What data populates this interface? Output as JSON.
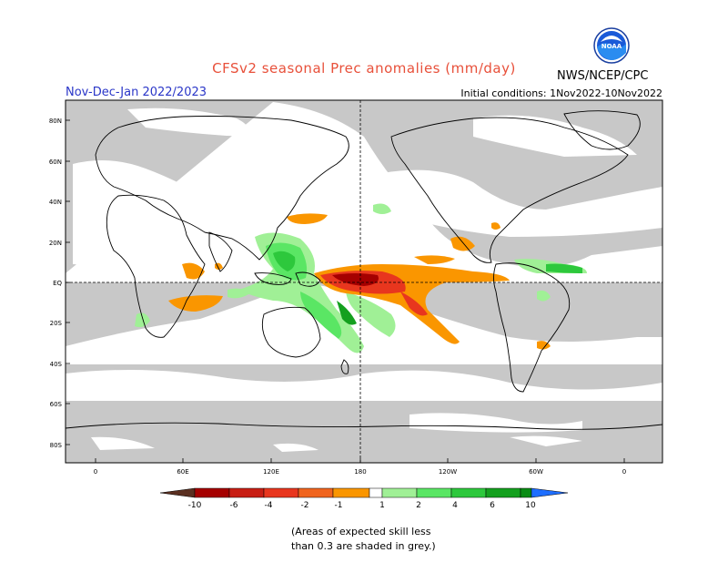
{
  "title": "CFSv2 seasonal Prec anomalies (mm/day)",
  "period": "Nov-Dec-Jan 2022/2023",
  "initial_conditions": "Initial conditions: 1Nov2022-10Nov2022",
  "agency": "NWS/NCEP/CPC",
  "logo_text": "NOAA",
  "lat_labels": [
    "80N",
    "60N",
    "40N",
    "20N",
    "EQ",
    "20S",
    "40S",
    "60S",
    "80S"
  ],
  "lon_labels": [
    "0",
    "60E",
    "120E",
    "180",
    "120W",
    "60W",
    "0"
  ],
  "colorbar_labels": [
    "-10",
    "-6",
    "-4",
    "-2",
    "-1",
    "1",
    "2",
    "4",
    "6",
    "10"
  ],
  "colorbar_colors": [
    "#5a2f20",
    "#a50000",
    "#c81e14",
    "#e8361e",
    "#f0641e",
    "#fa9600",
    "#ffffff",
    "#a0f096",
    "#5ae664",
    "#2dc83c",
    "#14a01e",
    "#0a8c14",
    "#1e6eff"
  ],
  "skill_note_line1": "(Areas of expected skill less",
  "skill_note_line2": "than 0.3 are shaded in grey.)",
  "colors": {
    "skill_grey": "#c8c8c8",
    "title": "#e8503a",
    "period": "#2a36c8"
  }
}
